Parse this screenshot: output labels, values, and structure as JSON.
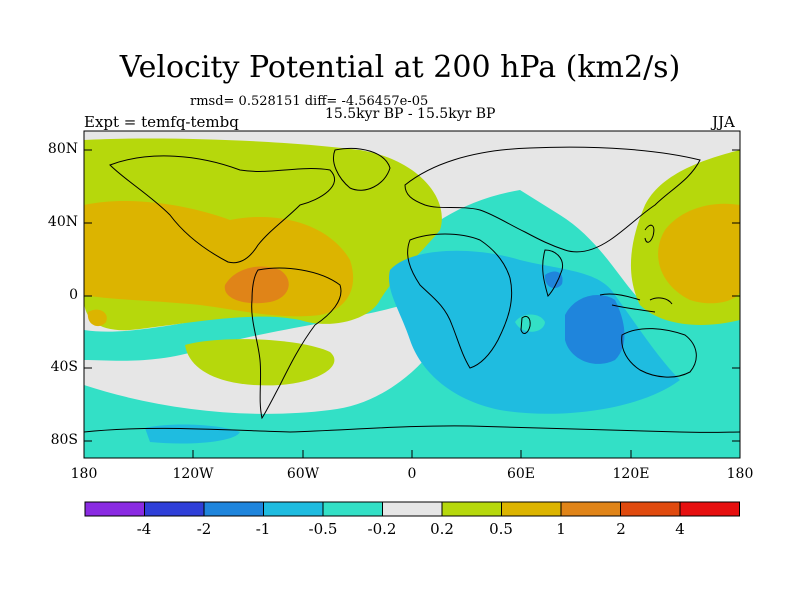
{
  "title": "Velocity Potential at 200 hPa (km2/s)",
  "stats": "rmsd= 0.528151  diff= -4.56457e-05",
  "period": "15.5kyr BP - 15.5kyr BP",
  "experiment": "Expt = temfq-tembq",
  "season": "JJA",
  "axes": {
    "y_labels": [
      "80N",
      "40N",
      "0",
      "40S",
      "80S"
    ],
    "x_labels": [
      "180",
      "120W",
      "60W",
      "0",
      "60E",
      "120E",
      "180"
    ]
  },
  "colorbar": {
    "levels": [
      "-4",
      "-2",
      "-1",
      "-0.5",
      "-0.2",
      "0.2",
      "0.5",
      "1",
      "2",
      "4"
    ],
    "colors": [
      "#8a2be2",
      "#2f3fd8",
      "#1f85dc",
      "#1fbce0",
      "#33e0c6",
      "#e6e6e6",
      "#b6d80c",
      "#dcb400",
      "#e08418",
      "#e04a0e",
      "#e60f0f"
    ]
  },
  "fill_colors": {
    "ocean_blue": "#1f85dc",
    "light_blue": "#1fbce0",
    "cyan": "#33e0c6",
    "neutral": "#e6e6e6",
    "yellow_green": "#b6d80c",
    "gold": "#dcb400",
    "orange": "#e08418"
  }
}
